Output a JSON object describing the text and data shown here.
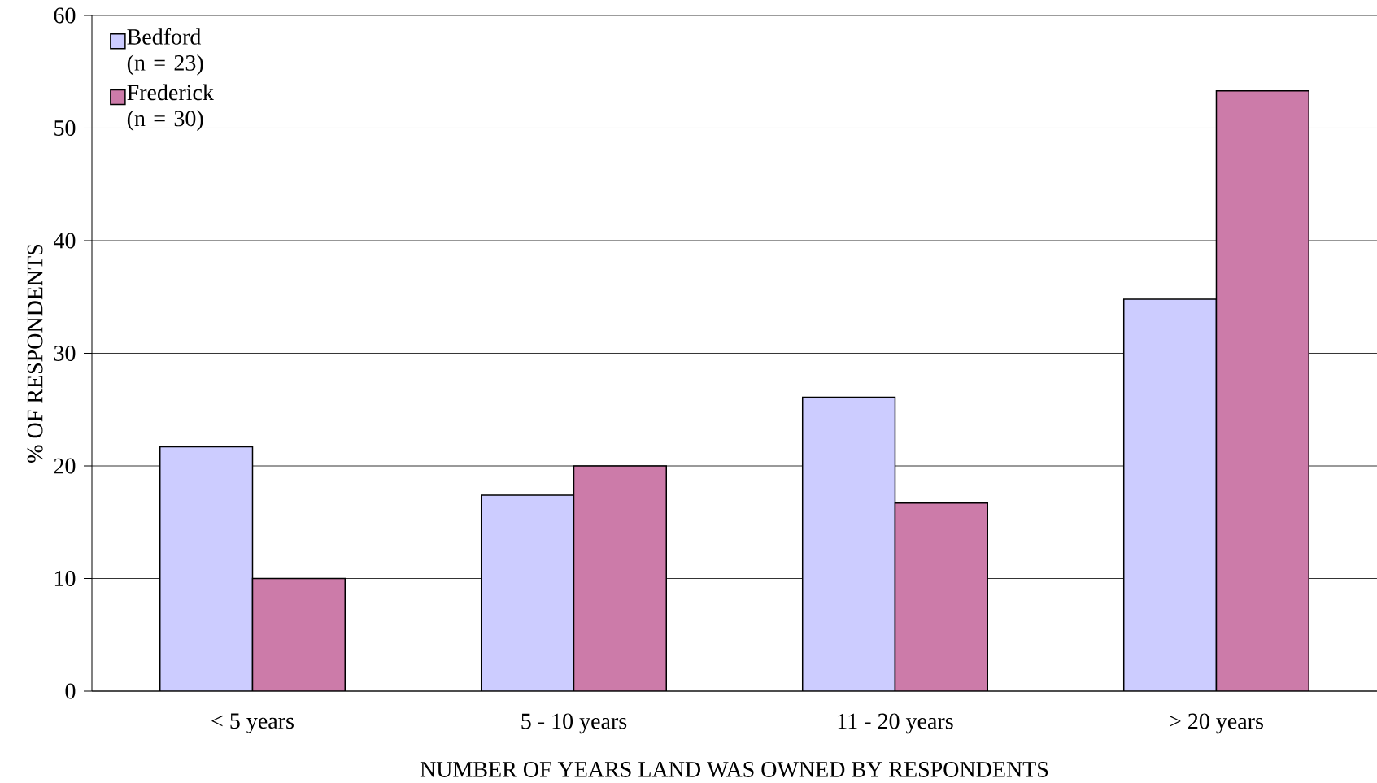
{
  "chart_data": {
    "type": "bar",
    "xlabel": "NUMBER OF YEARS LAND WAS OWNED BY RESPONDENTS",
    "ylabel": "% OF RESPONDENTS",
    "categories": [
      "< 5 years",
      "5 - 10 years",
      "11 - 20 years",
      "> 20 years"
    ],
    "series": [
      {
        "name": "Bedford (n = 23)",
        "color": "#ccccff",
        "values": [
          21.7,
          17.4,
          26.1,
          34.8
        ]
      },
      {
        "name": "Frederick (n = 30)",
        "color": "#cc7ba9",
        "values": [
          10,
          20,
          16.7,
          53.3
        ]
      }
    ],
    "ylim": [
      0,
      60
    ],
    "yticks": [
      0,
      10,
      20,
      30,
      40,
      50,
      60
    ],
    "grid": "y",
    "legend": "top left"
  }
}
